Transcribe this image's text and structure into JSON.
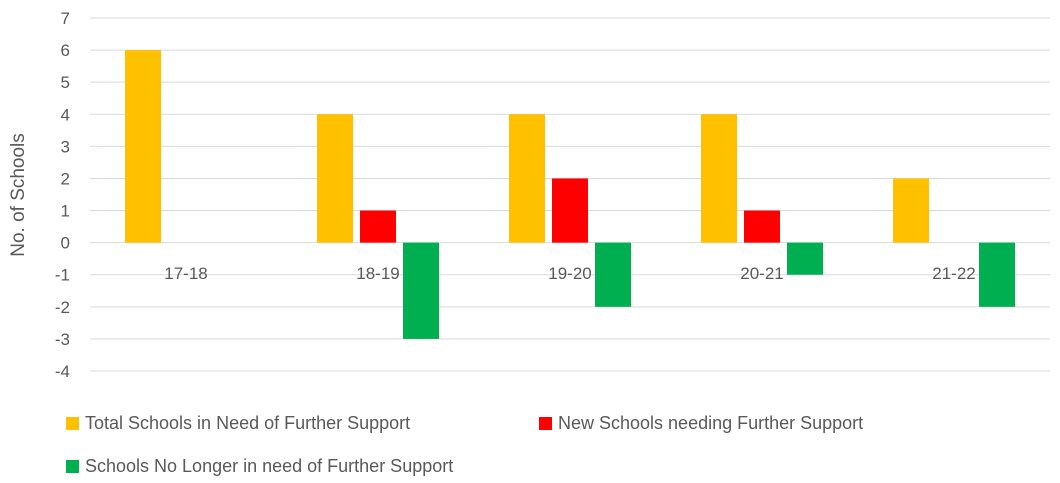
{
  "chart_data": {
    "type": "bar",
    "categories": [
      "17-18",
      "18-19",
      "19-20",
      "20-21",
      "21-22"
    ],
    "series": [
      {
        "name": "Total Schools in Need of Further Support",
        "values": [
          6,
          4,
          4,
          4,
          2
        ],
        "color": "#FFC000"
      },
      {
        "name": "New Schools needing Further Support",
        "values": [
          0,
          1,
          2,
          1,
          0
        ],
        "color": "#FF0000"
      },
      {
        "name": "Schools No Longer in need of Further Support",
        "values": [
          0,
          -3,
          -2,
          -1,
          -2
        ],
        "color": "#00B050"
      }
    ],
    "ylabel": "No. of Schools",
    "ylim": [
      -4,
      7
    ],
    "yticks": [
      7,
      6,
      5,
      4,
      3,
      2,
      1,
      0,
      -1,
      -2,
      -3,
      -4
    ],
    "grid": true,
    "legend_position": "bottom"
  }
}
